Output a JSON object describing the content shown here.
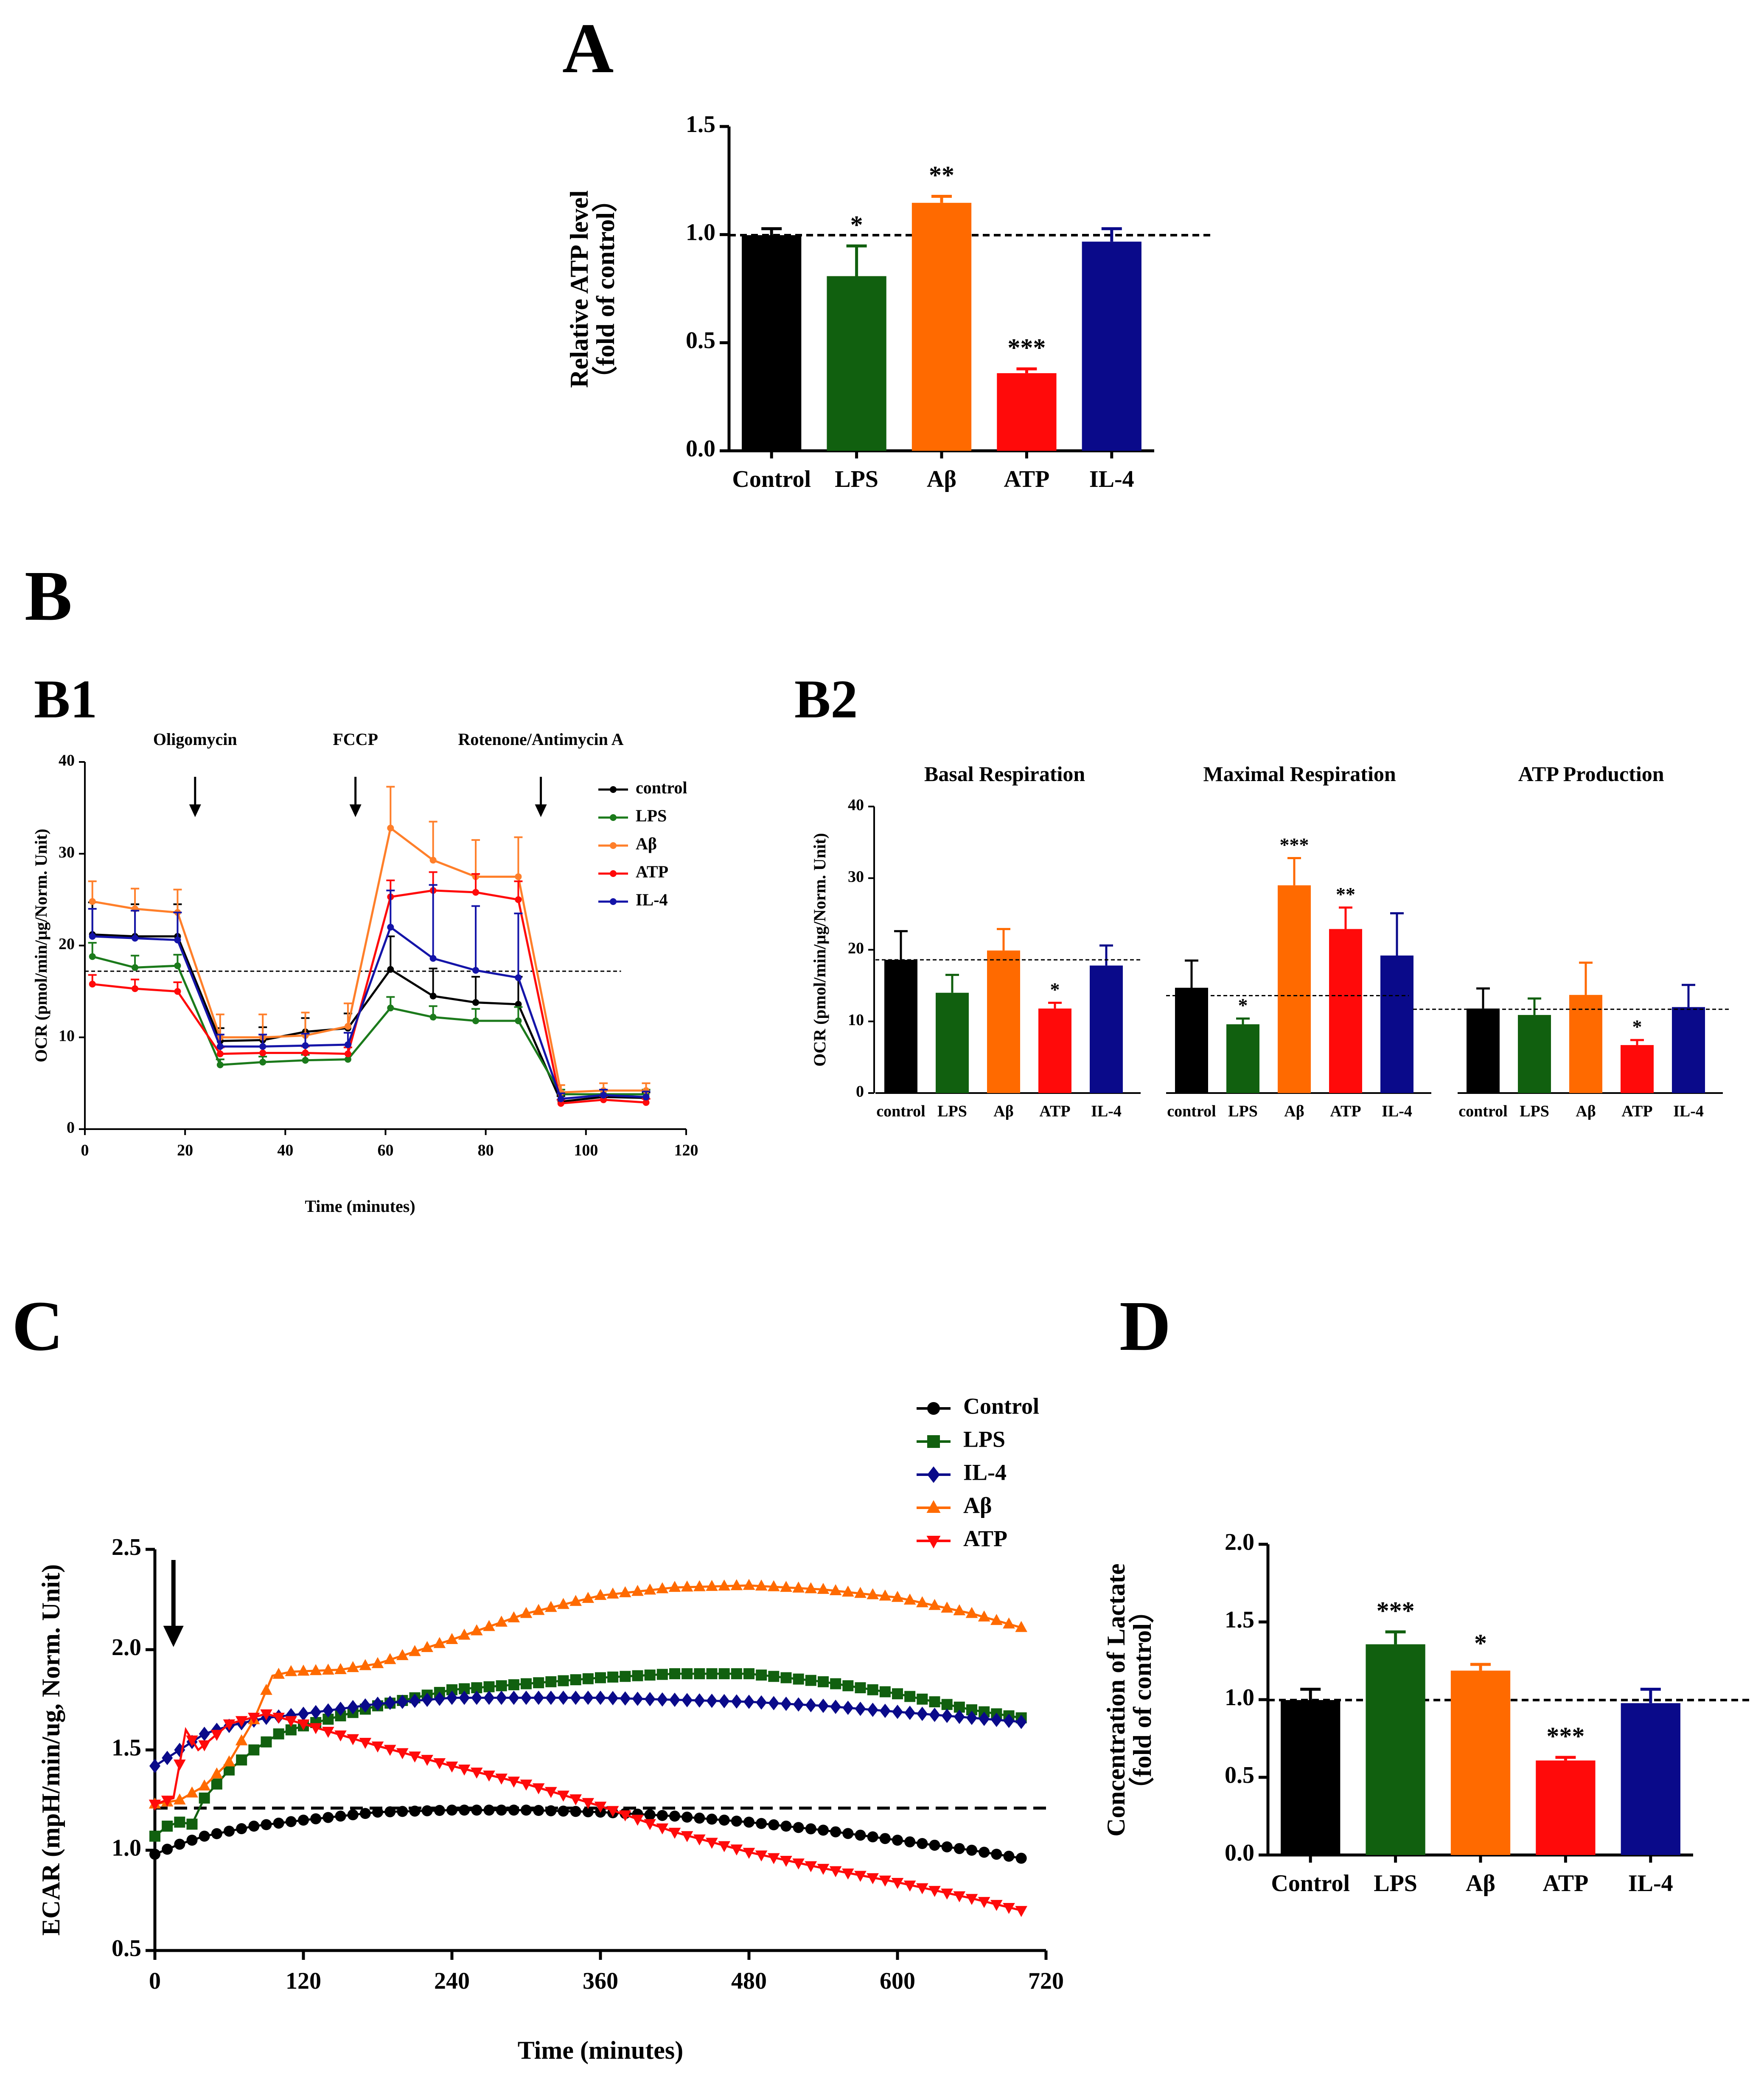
{
  "colors": {
    "Control": "#000000",
    "LPS": "#11600f",
    "Aβ": "#ff6a00",
    "ATP": "#ff0a0a",
    "IL-4": "#0a0a8a",
    "Aβ_line": "#ff7f2a",
    "LPS_line": "#1b7a1b",
    "IL-4_line": "#1414a8"
  },
  "panels": {
    "A": "A",
    "B": "B",
    "B1": "B1",
    "B2": "B2",
    "C": "C",
    "D": "D"
  },
  "chart_data": [
    {
      "id": "A",
      "type": "bar",
      "categories": [
        "Control",
        "LPS",
        "Aβ",
        "ATP",
        "IL-4"
      ],
      "values": [
        1.0,
        0.81,
        1.15,
        0.36,
        0.97
      ],
      "errors": [
        0.03,
        0.14,
        0.03,
        0.02,
        0.06
      ],
      "significance": [
        "",
        "*",
        "**",
        "***",
        ""
      ],
      "ylabel": "Relative ATP level",
      "ylabel2": "（fold of control）",
      "ylim": [
        0,
        1.5
      ],
      "yticks": [
        "0.0",
        "0.5",
        "1.0",
        "1.5"
      ],
      "reference_line": 1.0
    },
    {
      "id": "B1",
      "type": "line",
      "xlabel": "Time (minutes)",
      "ylabel": "OCR (pmol/min/μg/Norm. Unit)",
      "xlim": [
        0,
        120
      ],
      "ylim": [
        0,
        40
      ],
      "xticks": [
        "0",
        "20",
        "40",
        "60",
        "80",
        "100",
        "120"
      ],
      "yticks": [
        "0",
        "10",
        "20",
        "30",
        "40"
      ],
      "reference_line": 17.2,
      "injections": [
        {
          "label": "Oligomycin",
          "x": 22
        },
        {
          "label": "FCCP",
          "x": 54
        },
        {
          "label": "Rotenone/Antimycin A",
          "x": 91
        }
      ],
      "x": [
        1.5,
        10,
        18.5,
        27,
        35.5,
        44,
        52.5,
        61,
        69.5,
        78,
        86.5,
        95,
        103.5,
        112
      ],
      "series": [
        {
          "name": "control",
          "key": "Control",
          "values": [
            21.2,
            21.0,
            21.0,
            9.6,
            9.7,
            10.6,
            11.0,
            17.4,
            14.5,
            13.8,
            13.6,
            3.0,
            3.5,
            3.4
          ],
          "err": [
            3.5,
            3.5,
            3.5,
            1.4,
            1.4,
            1.5,
            1.6,
            3.6,
            3.0,
            2.8,
            3.0,
            0.6,
            0.7,
            0.6
          ]
        },
        {
          "name": "LPS",
          "key": "LPS",
          "values": [
            18.8,
            17.6,
            17.8,
            7.0,
            7.3,
            7.5,
            7.6,
            13.2,
            12.2,
            11.8,
            11.8,
            3.8,
            3.8,
            3.8
          ],
          "err": [
            1.5,
            1.3,
            1.2,
            0.6,
            0.6,
            0.6,
            0.6,
            1.2,
            1.2,
            1.3,
            1.5,
            0.5,
            0.5,
            0.5
          ]
        },
        {
          "name": "Aβ",
          "key": "Aβ",
          "values": [
            24.8,
            24.0,
            23.6,
            10.0,
            10.0,
            10.2,
            11.2,
            32.8,
            29.3,
            27.5,
            27.5,
            4.0,
            4.2,
            4.2
          ],
          "err": [
            2.2,
            2.2,
            2.5,
            2.5,
            2.5,
            2.5,
            2.5,
            4.5,
            4.2,
            4.0,
            4.3,
            0.8,
            0.8,
            0.8
          ]
        },
        {
          "name": "ATP",
          "key": "ATP",
          "values": [
            15.8,
            15.3,
            15.0,
            8.2,
            8.3,
            8.3,
            8.2,
            25.3,
            26.0,
            25.8,
            25.0,
            2.8,
            3.2,
            2.9
          ],
          "err": [
            1.0,
            1.0,
            1.0,
            0.7,
            0.7,
            0.7,
            0.7,
            1.8,
            2.0,
            2.0,
            2.0,
            0.4,
            0.4,
            0.4
          ]
        },
        {
          "name": "IL-4",
          "key": "IL-4",
          "values": [
            21.0,
            20.8,
            20.6,
            9.0,
            9.0,
            9.1,
            9.2,
            22.0,
            18.6,
            17.3,
            16.5,
            3.3,
            3.7,
            3.5
          ],
          "err": [
            3.0,
            3.0,
            3.0,
            1.3,
            1.3,
            1.3,
            1.3,
            4.0,
            8.0,
            7.0,
            7.0,
            0.6,
            0.6,
            0.6
          ]
        }
      ]
    },
    {
      "id": "B2",
      "type": "bar",
      "ylabel": "OCR (pmol/min/μg/Norm. Unit)",
      "ylim": [
        0,
        40
      ],
      "yticks": [
        "0",
        "10",
        "20",
        "30",
        "40"
      ],
      "groups": [
        {
          "title": "Basal Respiration",
          "categories": [
            "control",
            "LPS",
            "Aβ",
            "ATP",
            "IL-4"
          ],
          "values": [
            18.6,
            14.0,
            19.9,
            11.8,
            17.8
          ],
          "errors": [
            4.0,
            2.5,
            3.0,
            0.8,
            2.8
          ],
          "significance": [
            "",
            "",
            "",
            "*",
            ""
          ],
          "reference_line": 18.6
        },
        {
          "title": "Maximal Respiration",
          "categories": [
            "control",
            "LPS",
            "Aβ",
            "ATP",
            "IL-4"
          ],
          "values": [
            14.7,
            9.6,
            29.0,
            22.9,
            19.2
          ],
          "errors": [
            3.8,
            0.8,
            3.8,
            3.0,
            5.9
          ],
          "significance": [
            "",
            "*",
            "***",
            "**",
            ""
          ],
          "reference_line": 13.6
        },
        {
          "title": "ATP Production",
          "categories": [
            "control",
            "LPS",
            "Aβ",
            "ATP",
            "IL-4"
          ],
          "values": [
            11.8,
            10.9,
            13.7,
            6.7,
            12.0
          ],
          "errors": [
            2.8,
            2.3,
            4.5,
            0.7,
            3.1
          ],
          "significance": [
            "",
            "",
            "",
            "*",
            ""
          ],
          "reference_line": 11.7
        }
      ]
    },
    {
      "id": "C",
      "type": "line",
      "xlabel": "Time (minutes)",
      "ylabel": "ECAR (mpH/min/ug,   Norm. Unit)",
      "xlim": [
        0,
        720
      ],
      "ylim": [
        0.5,
        2.5
      ],
      "xticks": [
        "0",
        "120",
        "240",
        "360",
        "480",
        "600",
        "720"
      ],
      "yticks": [
        "0.5",
        "1.0",
        "1.5",
        "2.0",
        "2.5"
      ],
      "reference_line": 1.21,
      "arrow_at": 15,
      "series": [
        {
          "name": "Control",
          "marker": "circle",
          "points": [
            [
              0,
              0.98
            ],
            [
              20,
              1.03
            ],
            [
              40,
              1.07
            ],
            [
              80,
              1.12
            ],
            [
              120,
              1.15
            ],
            [
              180,
              1.19
            ],
            [
              240,
              1.2
            ],
            [
              300,
              1.2
            ],
            [
              360,
              1.19
            ],
            [
              420,
              1.17
            ],
            [
              480,
              1.14
            ],
            [
              540,
              1.1
            ],
            [
              600,
              1.05
            ],
            [
              660,
              1.0
            ],
            [
              700,
              0.96
            ]
          ]
        },
        {
          "name": "LPS",
          "marker": "square",
          "points": [
            [
              0,
              1.07
            ],
            [
              10,
              1.12
            ],
            [
              20,
              1.14
            ],
            [
              30,
              1.13
            ],
            [
              40,
              1.26
            ],
            [
              60,
              1.4
            ],
            [
              80,
              1.5
            ],
            [
              100,
              1.58
            ],
            [
              120,
              1.62
            ],
            [
              180,
              1.72
            ],
            [
              240,
              1.8
            ],
            [
              300,
              1.83
            ],
            [
              360,
              1.86
            ],
            [
              420,
              1.88
            ],
            [
              480,
              1.88
            ],
            [
              540,
              1.84
            ],
            [
              600,
              1.78
            ],
            [
              660,
              1.7
            ],
            [
              700,
              1.66
            ]
          ]
        },
        {
          "name": "IL-4",
          "marker": "diamond",
          "points": [
            [
              0,
              1.42
            ],
            [
              20,
              1.5
            ],
            [
              40,
              1.58
            ],
            [
              60,
              1.62
            ],
            [
              90,
              1.66
            ],
            [
              120,
              1.68
            ],
            [
              180,
              1.73
            ],
            [
              240,
              1.76
            ],
            [
              300,
              1.76
            ],
            [
              360,
              1.76
            ],
            [
              420,
              1.75
            ],
            [
              480,
              1.74
            ],
            [
              540,
              1.72
            ],
            [
              600,
              1.69
            ],
            [
              660,
              1.66
            ],
            [
              700,
              1.64
            ]
          ]
        },
        {
          "name": "Aβ",
          "marker": "triangle",
          "points": [
            [
              0,
              1.23
            ],
            [
              20,
              1.25
            ],
            [
              40,
              1.32
            ],
            [
              60,
              1.44
            ],
            [
              80,
              1.65
            ],
            [
              95,
              1.87
            ],
            [
              110,
              1.89
            ],
            [
              150,
              1.9
            ],
            [
              180,
              1.93
            ],
            [
              240,
              2.05
            ],
            [
              300,
              2.18
            ],
            [
              360,
              2.27
            ],
            [
              420,
              2.31
            ],
            [
              480,
              2.32
            ],
            [
              540,
              2.3
            ],
            [
              600,
              2.26
            ],
            [
              660,
              2.18
            ],
            [
              700,
              2.11
            ]
          ]
        },
        {
          "name": "ATP",
          "marker": "triangle-down",
          "points": [
            [
              0,
              1.23
            ],
            [
              15,
              1.26
            ],
            [
              25,
              1.6
            ],
            [
              35,
              1.5
            ],
            [
              60,
              1.63
            ],
            [
              90,
              1.68
            ],
            [
              120,
              1.63
            ],
            [
              180,
              1.52
            ],
            [
              240,
              1.42
            ],
            [
              300,
              1.33
            ],
            [
              360,
              1.22
            ],
            [
              420,
              1.09
            ],
            [
              480,
              0.99
            ],
            [
              540,
              0.91
            ],
            [
              600,
              0.84
            ],
            [
              660,
              0.76
            ],
            [
              700,
              0.7
            ]
          ]
        }
      ]
    },
    {
      "id": "D",
      "type": "bar",
      "categories": [
        "Control",
        "LPS",
        "Aβ",
        "ATP",
        "IL-4"
      ],
      "values": [
        1.0,
        1.36,
        1.19,
        0.61,
        0.98
      ],
      "errors": [
        0.07,
        0.08,
        0.04,
        0.02,
        0.09
      ],
      "significance": [
        "",
        "***",
        "*",
        "***",
        ""
      ],
      "ylabel": "Concentration of Lactate",
      "ylabel2": "（fold of control）",
      "ylim": [
        0,
        2.0
      ],
      "yticks": [
        "0.0",
        "0.5",
        "1.0",
        "1.5",
        "2.0"
      ],
      "reference_line": 1.0
    }
  ]
}
